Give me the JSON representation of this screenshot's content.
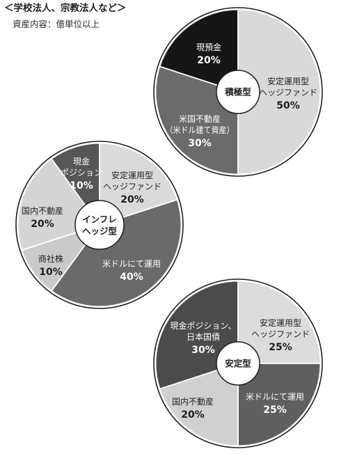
{
  "header": {
    "title": "＜学校法人、宗教法人など＞",
    "subtitle": "資産内容：億単位以上"
  },
  "chart_data": [
    {
      "type": "pie",
      "center_label": [
        "積極型"
      ],
      "unit": "%",
      "slices": [
        {
          "label": [
            "安定運用型",
            "ヘッジファンド"
          ],
          "value": 50,
          "color": "#d9d9d9",
          "text_color": "#1e1e1e"
        },
        {
          "label": [
            "米国不動産",
            "（米ドル建て資産）"
          ],
          "value": 30,
          "color": "#6b6b6b",
          "text_color": "#ffffff"
        },
        {
          "label": [
            "現預金"
          ],
          "value": 20,
          "color": "#161616",
          "text_color": "#ffffff"
        }
      ]
    },
    {
      "type": "pie",
      "center_label": [
        "インフレ",
        "ヘッジ型"
      ],
      "unit": "%",
      "slices": [
        {
          "label": [
            "安定運用型",
            "ヘッジファンド"
          ],
          "value": 20,
          "color": "#dadada",
          "text_color": "#1e1e1e"
        },
        {
          "label": [
            "米ドルにて運用"
          ],
          "value": 40,
          "color": "#6a6a6a",
          "text_color": "#ffffff"
        },
        {
          "label": [
            "商社株"
          ],
          "value": 10,
          "color": "#cacaca",
          "text_color": "#1e1e1e"
        },
        {
          "label": [
            "国内不動産"
          ],
          "value": 20,
          "color": "#d5d5d5",
          "text_color": "#1e1e1e"
        },
        {
          "label": [
            "現金",
            "ポジション"
          ],
          "value": 10,
          "color": "#565656",
          "text_color": "#ffffff"
        }
      ]
    },
    {
      "type": "pie",
      "center_label": [
        "安定型"
      ],
      "unit": "%",
      "slices": [
        {
          "label": [
            "安定運用型",
            "ヘッジファンド"
          ],
          "value": 25,
          "color": "#dcdcdc",
          "text_color": "#1e1e1e"
        },
        {
          "label": [
            "米ドルにて運用"
          ],
          "value": 25,
          "color": "#5f5f5f",
          "text_color": "#ffffff"
        },
        {
          "label": [
            "国内不動産"
          ],
          "value": 20,
          "color": "#d0d0d0",
          "text_color": "#1e1e1e"
        },
        {
          "label": [
            "現金ポジション、",
            "日本国債"
          ],
          "value": 30,
          "color": "#4b4b4b",
          "text_color": "#ffffff"
        }
      ]
    }
  ]
}
